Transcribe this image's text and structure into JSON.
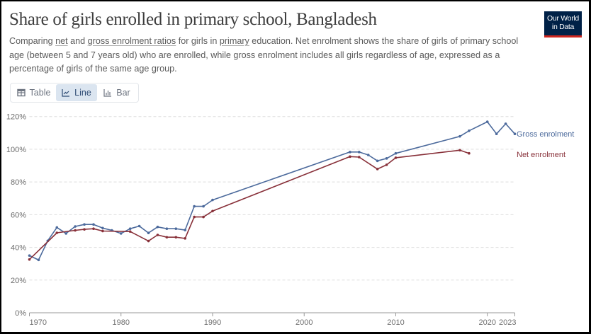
{
  "header": {
    "title": "Share of girls enrolled in primary school, Bangladesh",
    "subtitle_parts": [
      {
        "text": "Comparing ",
        "link": false
      },
      {
        "text": "net",
        "link": true
      },
      {
        "text": " and ",
        "link": false
      },
      {
        "text": "gross enrolment ratios",
        "link": true
      },
      {
        "text": " for girls in ",
        "link": false
      },
      {
        "text": "primary",
        "link": true
      },
      {
        "text": " education. Net enrolment shows the share of girls of primary school age (between 5 and 7 years old) who are enrolled, while gross enrolment includes all girls regardless of age, expressed as a percentage of girls of the same age group.",
        "link": false
      }
    ],
    "logo_line1": "Our World",
    "logo_line2": "in Data"
  },
  "tabs": [
    {
      "label": "Table",
      "icon": "table-icon",
      "selected": false
    },
    {
      "label": "Line",
      "icon": "line-chart-icon",
      "selected": true
    },
    {
      "label": "Bar",
      "icon": "bar-chart-icon",
      "selected": false
    }
  ],
  "colors": {
    "gross": "#4c6a9c",
    "net": "#883039",
    "grid": "#dddddd",
    "axis": "#999999"
  },
  "chart_data": {
    "type": "line",
    "title": "Share of girls enrolled in primary school, Bangladesh",
    "xlabel": "",
    "ylabel": "",
    "xlim": [
      1970,
      2023
    ],
    "ylim": [
      0,
      120
    ],
    "grid": true,
    "x_ticks": [
      1970,
      1980,
      1990,
      2000,
      2010,
      2020,
      2023
    ],
    "y_ticks": [
      0,
      20,
      40,
      60,
      80,
      100,
      120
    ],
    "y_tick_labels": [
      "0%",
      "20%",
      "40%",
      "60%",
      "80%",
      "100%",
      "120%"
    ],
    "legend_placement": "right (inline line labels)",
    "series": [
      {
        "name": "Gross enrolment",
        "color": "#4c6a9c",
        "x": [
          1970,
          1971,
          1972,
          1973,
          1974,
          1975,
          1976,
          1977,
          1978,
          1979,
          1980,
          1981,
          1982,
          1983,
          1984,
          1985,
          1986,
          1987,
          1988,
          1989,
          1990,
          2005,
          2006,
          2007,
          2008,
          2009,
          2010,
          2017,
          2018,
          2020,
          2021,
          2022,
          2023
        ],
        "values": [
          35.0,
          32.3,
          44.0,
          52.2,
          48.5,
          52.8,
          54.0,
          54.0,
          51.8,
          50.4,
          48.5,
          51.4,
          53.0,
          48.8,
          52.5,
          51.4,
          51.4,
          50.6,
          65.1,
          65.1,
          69.0,
          98.3,
          98.3,
          96.5,
          92.9,
          94.4,
          97.5,
          107.9,
          111.3,
          116.8,
          109.4,
          115.6,
          109.4
        ]
      },
      {
        "name": "Net enrolment",
        "color": "#883039",
        "x": [
          1970,
          1973,
          1975,
          1976,
          1977,
          1978,
          1981,
          1983,
          1984,
          1985,
          1986,
          1987,
          1988,
          1989,
          1990,
          2005,
          2006,
          2008,
          2009,
          2010,
          2017,
          2018
        ],
        "values": [
          32.6,
          48.9,
          50.4,
          51.0,
          51.4,
          50.0,
          49.7,
          43.9,
          47.6,
          46.2,
          46.2,
          45.5,
          58.6,
          58.6,
          62.2,
          95.5,
          95.2,
          87.9,
          90.5,
          94.8,
          99.4,
          97.5
        ]
      }
    ]
  }
}
